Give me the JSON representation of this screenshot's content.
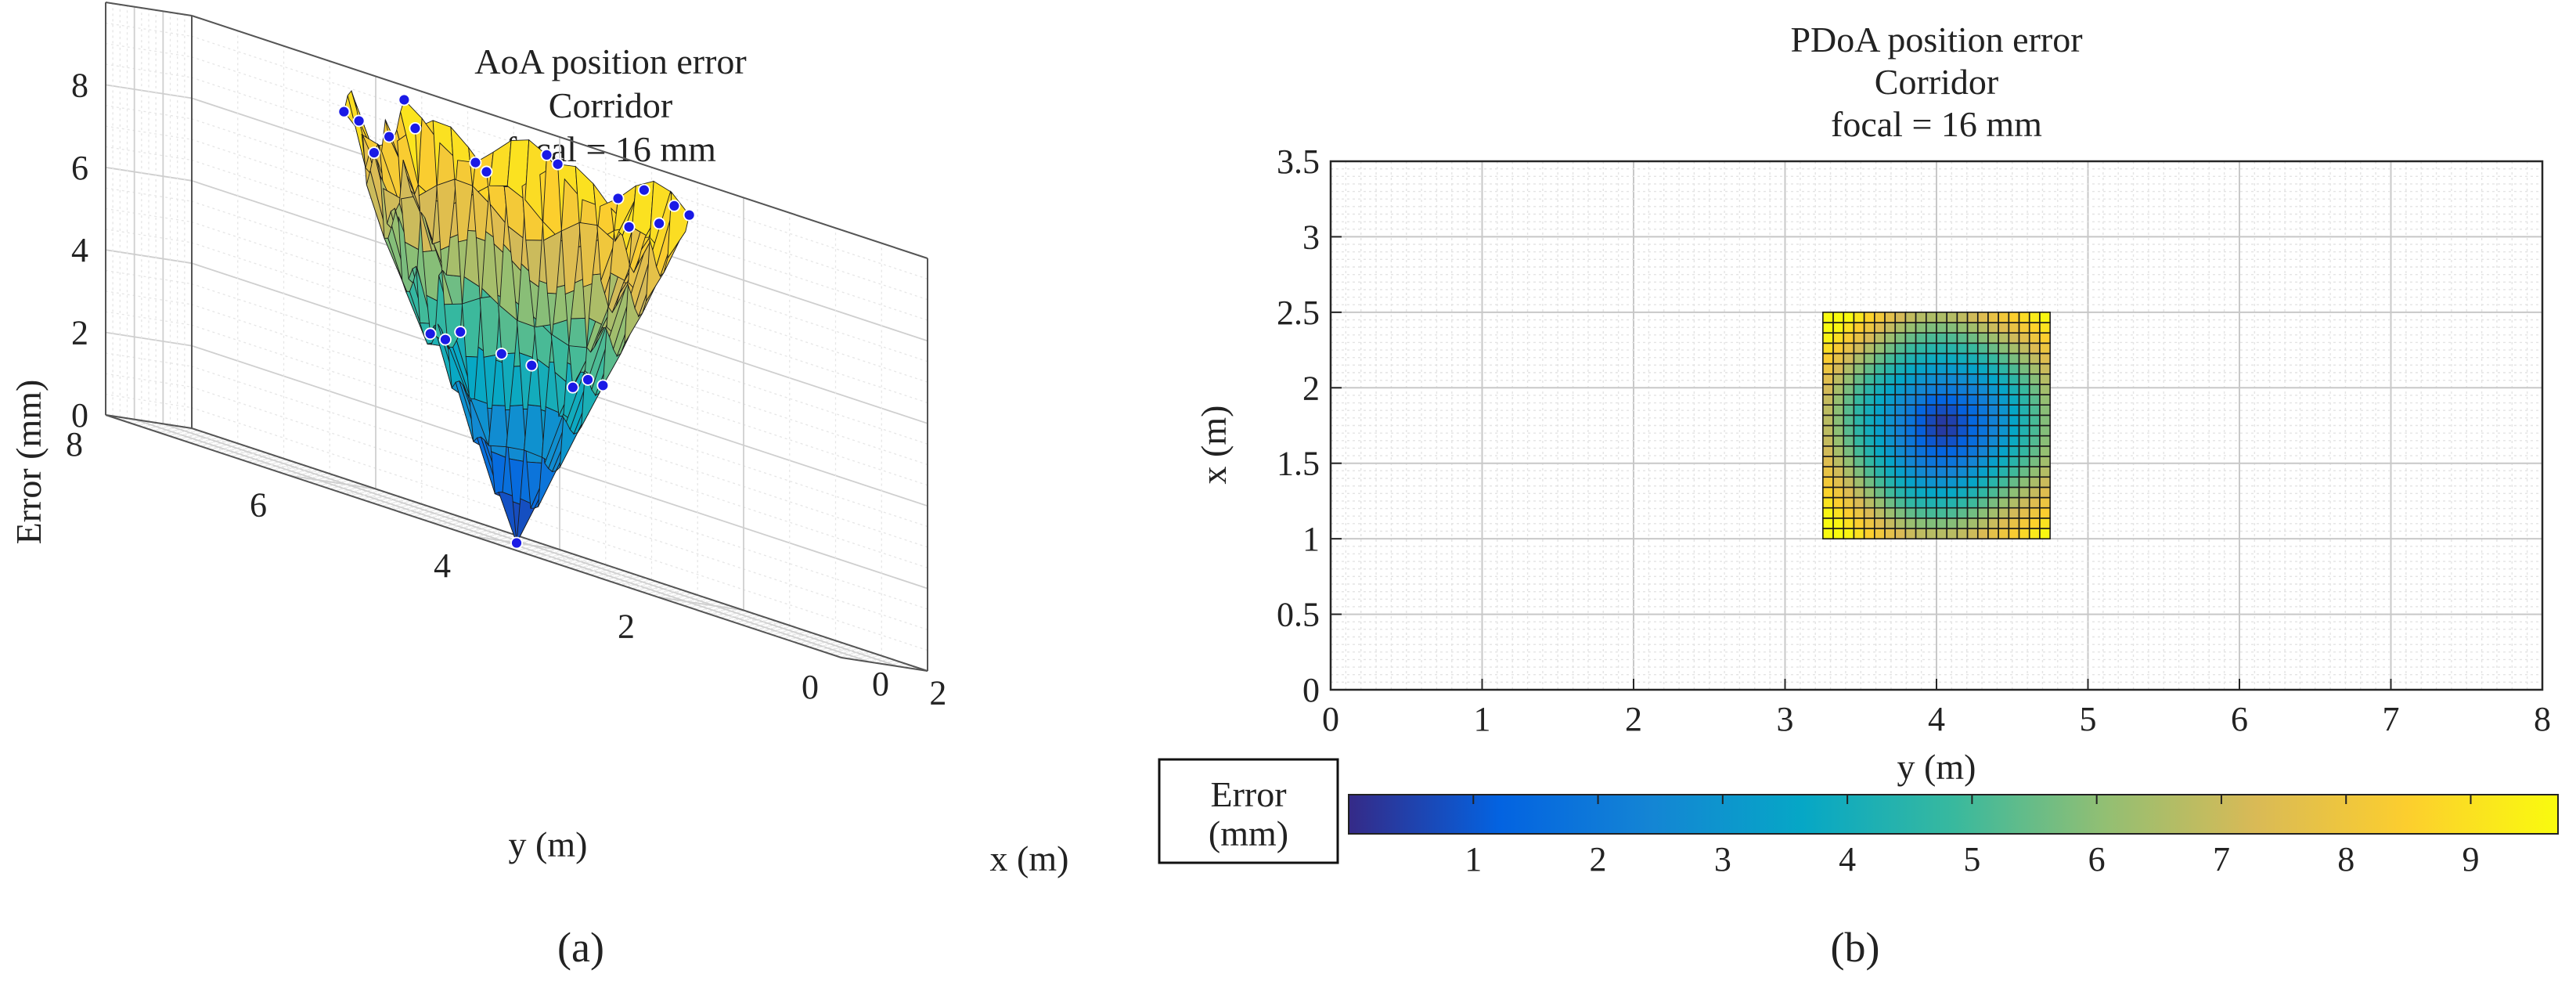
{
  "figure": {
    "panel_a_label": "(a)",
    "panel_b_label": "(b)",
    "colorbar_label_line1": "Error",
    "colorbar_label_line2": "(mm)"
  },
  "chart_data": [
    {
      "id": "a",
      "type": "surface3d",
      "title": [
        "AoA position error",
        "Corridor",
        "focal = 16 mm"
      ],
      "xlabel": "x (m)",
      "ylabel": "y (m)",
      "zlabel": "Error (mm)",
      "xlim": [
        0,
        3
      ],
      "ylim": [
        0,
        8
      ],
      "zlim": [
        0,
        10
      ],
      "x_ticks": [
        0,
        2
      ],
      "y_ticks": [
        0,
        2,
        4,
        6,
        8
      ],
      "z_ticks": [
        0,
        2,
        4,
        6,
        8
      ],
      "grid": true,
      "colormap": "parula",
      "marker_color": "#1a1ae6",
      "surface_rows": 17,
      "surface_cols": 17,
      "note_surface": "V-shaped error surface, minimum near 0 mm at the central point, rising to about 9–10 mm at the outer edges; measured points shown as blue markers"
    },
    {
      "id": "b",
      "type": "heatmap",
      "title": [
        "PDoA position error",
        "Corridor",
        "focal = 16 mm"
      ],
      "xlabel": "y (m)",
      "ylabel": "x (m)",
      "xlim": [
        0,
        8
      ],
      "ylim": [
        0,
        3.5
      ],
      "x_ticks": [
        0,
        1,
        2,
        3,
        4,
        5,
        6,
        7,
        8
      ],
      "y_ticks": [
        0,
        0.5,
        1,
        1.5,
        2,
        2.5,
        3,
        3.5
      ],
      "y_tick_labels": [
        "0",
        "0.5",
        "1",
        "1.5",
        "2",
        "2.5",
        "3",
        "3.5"
      ],
      "grid": true,
      "region": {
        "y_range": [
          3.25,
          4.75
        ],
        "x_range": [
          1.0,
          2.5
        ],
        "cells_y": 22,
        "cells_x": 22
      },
      "minimum_at": {
        "y": 4.05,
        "x": 1.75
      },
      "value_range": [
        0.2,
        9.6
      ],
      "colormap": "parula"
    }
  ],
  "colorbar": {
    "min": 0,
    "max": 9.7,
    "ticks": [
      1,
      2,
      3,
      4,
      5,
      6,
      7,
      8,
      9
    ],
    "colors": [
      "#352a87",
      "#0363e1",
      "#1485d4",
      "#06a7c6",
      "#38b99e",
      "#92bf73",
      "#d9ba56",
      "#fcce2e",
      "#f9fb0e"
    ]
  }
}
